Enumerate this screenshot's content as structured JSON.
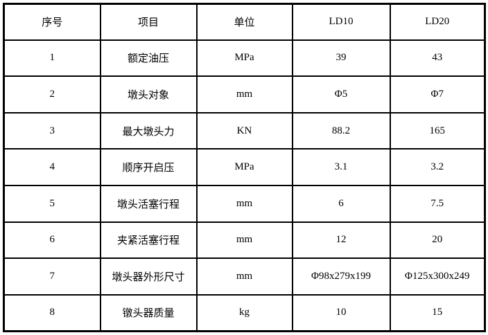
{
  "table": {
    "headers": [
      "序号",
      "项目",
      "单位",
      "LD10",
      "LD20"
    ],
    "rows": [
      [
        "1",
        "额定油压",
        "MPa",
        "39",
        "43"
      ],
      [
        "2",
        "墩头对象",
        "mm",
        "Φ5",
        "Φ7"
      ],
      [
        "3",
        "最大墩头力",
        "KN",
        "88.2",
        "165"
      ],
      [
        "4",
        "顺序开启压",
        "MPa",
        "3.1",
        "3.2"
      ],
      [
        "5",
        "墩头活塞行程",
        "mm",
        "6",
        "7.5"
      ],
      [
        "6",
        "夹紧活塞行程",
        "mm",
        "12",
        "20"
      ],
      [
        "7",
        "墩头器外形尺寸",
        "mm",
        "Φ98x279x199",
        "Φ125x300x249"
      ],
      [
        "8",
        "镦头器质量",
        "kg",
        "10",
        "15"
      ]
    ],
    "colors": {
      "border": "#000000",
      "background": "#ffffff",
      "text": "#000000"
    }
  }
}
